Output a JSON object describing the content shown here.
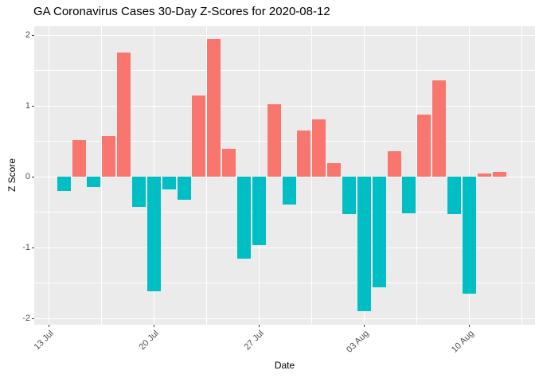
{
  "chart_data": {
    "type": "bar",
    "title": "GA Coronavirus Cases 30-Day Z-Scores for 2020-08-12",
    "xlabel": "Date",
    "ylabel": "Z Score",
    "x": [
      "2020-07-14",
      "2020-07-15",
      "2020-07-16",
      "2020-07-17",
      "2020-07-18",
      "2020-07-19",
      "2020-07-20",
      "2020-07-21",
      "2020-07-22",
      "2020-07-23",
      "2020-07-24",
      "2020-07-25",
      "2020-07-26",
      "2020-07-27",
      "2020-07-28",
      "2020-07-29",
      "2020-07-30",
      "2020-07-31",
      "2020-08-01",
      "2020-08-02",
      "2020-08-03",
      "2020-08-04",
      "2020-08-05",
      "2020-08-06",
      "2020-08-07",
      "2020-08-08",
      "2020-08-09",
      "2020-08-10",
      "2020-08-11",
      "2020-08-12"
    ],
    "values": [
      -0.2,
      0.52,
      -0.14,
      0.58,
      1.76,
      -0.42,
      -1.61,
      -0.18,
      -0.32,
      1.15,
      1.95,
      0.4,
      -1.15,
      -0.96,
      1.03,
      -0.39,
      0.66,
      0.81,
      0.2,
      -0.53,
      -1.89,
      -1.56,
      0.36,
      -0.51,
      0.88,
      1.36,
      -0.53,
      -1.65,
      0.05,
      0.07
    ],
    "x_tick_labels": [
      "13 Jul",
      "20 Jul",
      "27 Jul",
      "03 Aug",
      "10 Aug"
    ],
    "y_tick_labels": [
      "-2",
      "-1",
      "0",
      "1",
      "2"
    ],
    "y_ticks": [
      -2,
      -1,
      0,
      1,
      2
    ],
    "ylim": [
      -2.09,
      2.12
    ],
    "grid": "on",
    "legend": "none",
    "positive_color": "#f8766d",
    "negative_color": "#00bfc4",
    "panel_background": "#ebebeb",
    "gridline_color": "#ffffff",
    "axis_text_color": "#4d4d4d"
  }
}
